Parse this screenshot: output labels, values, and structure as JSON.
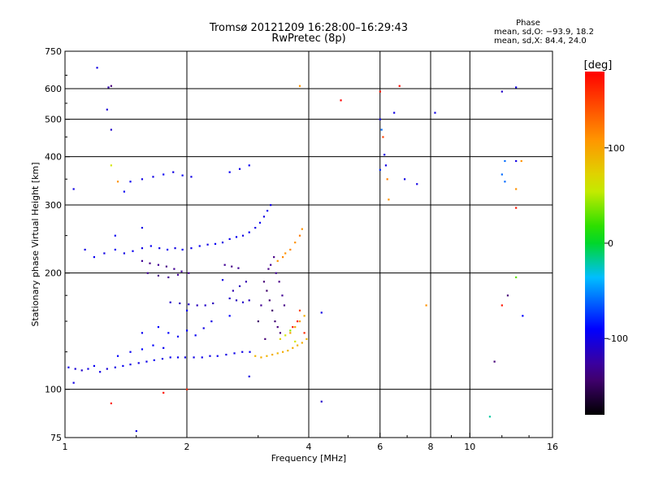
{
  "title": {
    "line1": "Tromsø 20121209 16:28:00–16:29:43",
    "line2": "RwPretec (8p)"
  },
  "phase_stats": {
    "heading": "Phase",
    "line_o": "mean, sd,O: −93.9, 18.2",
    "line_x": "mean, sd,X:  84.4, 24.0"
  },
  "chart_data": {
    "type": "scatter",
    "xlabel": "Frequency [MHz]",
    "ylabel": "Stationary phase Virtual Height [km]",
    "x_scale": "log",
    "y_scale": "log",
    "xlim": [
      1,
      16
    ],
    "ylim": [
      75,
      750
    ],
    "x_ticks": [
      {
        "value": 1,
        "label": "1"
      },
      {
        "value": 2,
        "label": "2"
      },
      {
        "value": 4,
        "label": "4"
      },
      {
        "value": 6,
        "label": "6"
      },
      {
        "value": 8,
        "label": "8"
      },
      {
        "value": 10,
        "label": "10"
      },
      {
        "value": 16,
        "label": "16"
      }
    ],
    "y_ticks": [
      {
        "value": 75,
        "label": "75"
      },
      {
        "value": 100,
        "label": "100"
      },
      {
        "value": 200,
        "label": "200"
      },
      {
        "value": 300,
        "label": "300"
      },
      {
        "value": 400,
        "label": "400"
      },
      {
        "value": 500,
        "label": "500"
      },
      {
        "value": 600,
        "label": "600"
      },
      {
        "value": 750,
        "label": "750"
      }
    ],
    "grid": true,
    "colorbar": {
      "unit": "[deg]",
      "range": [
        -180,
        180
      ],
      "ticks": [
        {
          "value": 100,
          "label": "100"
        },
        {
          "value": 0,
          "label": "0"
        },
        {
          "value": -100,
          "label": "-100"
        }
      ]
    },
    "series": [
      {
        "points": [
          [
            1.02,
            114,
            -100
          ],
          [
            1.06,
            113,
            -105
          ],
          [
            1.1,
            112,
            -110
          ],
          [
            1.14,
            113,
            -100
          ],
          [
            1.18,
            115,
            -95
          ],
          [
            1.22,
            111,
            -100
          ],
          [
            1.27,
            113,
            -105
          ],
          [
            1.33,
            114,
            -100
          ],
          [
            1.39,
            115,
            -95
          ],
          [
            1.45,
            116,
            -100
          ],
          [
            1.52,
            117,
            -100
          ],
          [
            1.59,
            118,
            -98
          ],
          [
            1.66,
            119,
            -95
          ],
          [
            1.74,
            120,
            -100
          ],
          [
            1.82,
            121,
            -98
          ],
          [
            1.9,
            121,
            -95
          ],
          [
            1.98,
            121,
            -100
          ],
          [
            2.08,
            121,
            -100
          ],
          [
            2.18,
            121,
            -98
          ],
          [
            2.28,
            122,
            -100
          ],
          [
            2.38,
            122,
            -95
          ],
          [
            2.5,
            123,
            -100
          ],
          [
            2.62,
            124,
            -98
          ],
          [
            2.74,
            125,
            -100
          ],
          [
            2.86,
            125,
            -95
          ],
          [
            1.35,
            122,
            -90
          ],
          [
            1.45,
            125,
            -95
          ],
          [
            1.55,
            127,
            -90
          ],
          [
            1.65,
            130,
            -92
          ],
          [
            1.75,
            128,
            -95
          ],
          [
            1.8,
            140,
            -90
          ],
          [
            1.9,
            137,
            -95
          ],
          [
            2.0,
            142,
            -90
          ],
          [
            2.1,
            138,
            -95
          ],
          [
            2.2,
            144,
            -100
          ],
          [
            1.55,
            140,
            -95
          ],
          [
            1.7,
            145,
            -90
          ],
          [
            2.0,
            160,
            -95
          ],
          [
            2.3,
            150,
            -100
          ],
          [
            2.55,
            155,
            -90
          ],
          [
            1.12,
            230,
            -100
          ],
          [
            1.18,
            220,
            -95
          ],
          [
            1.25,
            225,
            -100
          ],
          [
            1.33,
            230,
            -95
          ],
          [
            1.4,
            225,
            -100
          ],
          [
            1.47,
            228,
            -95
          ],
          [
            1.55,
            232,
            -100
          ],
          [
            1.63,
            235,
            -95
          ],
          [
            1.71,
            232,
            -100
          ],
          [
            1.79,
            230,
            -95
          ],
          [
            1.87,
            232,
            -100
          ],
          [
            1.95,
            230,
            -95
          ],
          [
            2.05,
            232,
            -98
          ],
          [
            2.15,
            235,
            -95
          ],
          [
            2.25,
            237,
            -100
          ],
          [
            2.35,
            238,
            -95
          ],
          [
            2.45,
            240,
            -100
          ],
          [
            2.55,
            245,
            -98
          ],
          [
            2.65,
            248,
            -95
          ],
          [
            2.75,
            250,
            -100
          ],
          [
            2.85,
            255,
            -95
          ],
          [
            2.95,
            262,
            -100
          ],
          [
            3.03,
            270,
            -95
          ],
          [
            3.1,
            280,
            -100
          ],
          [
            3.16,
            290,
            -95
          ],
          [
            3.22,
            300,
            -100
          ],
          [
            1.33,
            250,
            -95
          ],
          [
            1.55,
            262,
            -100
          ],
          [
            1.55,
            215,
            -130
          ],
          [
            1.62,
            212,
            -135
          ],
          [
            1.7,
            210,
            -130
          ],
          [
            1.78,
            208,
            -135
          ],
          [
            1.86,
            205,
            -130
          ],
          [
            1.94,
            202,
            -128
          ],
          [
            2.02,
            200,
            -130
          ],
          [
            1.6,
            200,
            -130
          ],
          [
            1.7,
            197,
            -135
          ],
          [
            1.8,
            195,
            -130
          ],
          [
            1.9,
            198,
            -128
          ],
          [
            2.48,
            210,
            -130
          ],
          [
            2.58,
            208,
            -135
          ],
          [
            2.68,
            206,
            -130
          ],
          [
            1.82,
            168,
            -110
          ],
          [
            1.92,
            167,
            -115
          ],
          [
            2.02,
            166,
            -110
          ],
          [
            2.12,
            165,
            -115
          ],
          [
            2.22,
            165,
            -110
          ],
          [
            2.32,
            167,
            -115
          ],
          [
            2.55,
            172,
            -110
          ],
          [
            2.65,
            170,
            -115
          ],
          [
            2.75,
            168,
            -110
          ],
          [
            2.85,
            170,
            -115
          ],
          [
            2.6,
            180,
            -120
          ],
          [
            2.7,
            185,
            -115
          ],
          [
            2.45,
            192,
            -100
          ],
          [
            2.8,
            190,
            -120
          ],
          [
            3.1,
            190,
            -140
          ],
          [
            3.15,
            180,
            -145
          ],
          [
            3.2,
            170,
            -140
          ],
          [
            3.25,
            160,
            -145
          ],
          [
            3.3,
            150,
            -140
          ],
          [
            3.35,
            145,
            -138
          ],
          [
            3.4,
            140,
            -140
          ],
          [
            3.05,
            165,
            -130
          ],
          [
            3.18,
            205,
            -135
          ],
          [
            3.22,
            210,
            -130
          ],
          [
            3.28,
            220,
            -135
          ],
          [
            3.32,
            200,
            -130
          ],
          [
            3.38,
            190,
            -135
          ],
          [
            3.44,
            175,
            -130
          ],
          [
            3.48,
            165,
            -135
          ],
          [
            3.0,
            150,
            -145
          ],
          [
            3.12,
            135,
            -140
          ],
          [
            2.95,
            122,
            90
          ],
          [
            3.05,
            121,
            95
          ],
          [
            3.15,
            122,
            90
          ],
          [
            3.25,
            123,
            95
          ],
          [
            3.35,
            124,
            90
          ],
          [
            3.45,
            125,
            95
          ],
          [
            3.55,
            126,
            90
          ],
          [
            3.65,
            128,
            95
          ],
          [
            3.75,
            130,
            90
          ],
          [
            3.85,
            132,
            95
          ],
          [
            3.95,
            135,
            90
          ],
          [
            3.6,
            140,
            100
          ],
          [
            3.7,
            145,
            95
          ],
          [
            3.8,
            150,
            100
          ],
          [
            3.9,
            155,
            95
          ],
          [
            3.4,
            135,
            70
          ],
          [
            3.5,
            138,
            60
          ],
          [
            3.6,
            142,
            40
          ],
          [
            3.7,
            133,
            60
          ],
          [
            3.5,
            225,
            110
          ],
          [
            3.6,
            230,
            115
          ],
          [
            3.7,
            240,
            110
          ],
          [
            3.8,
            250,
            120
          ],
          [
            3.85,
            260,
            110
          ],
          [
            3.35,
            215,
            110
          ],
          [
            3.45,
            220,
            115
          ],
          [
            3.8,
            160,
            150
          ],
          [
            3.9,
            140,
            160
          ],
          [
            3.65,
            145,
            170
          ],
          [
            3.75,
            150,
            175
          ],
          [
            1.65,
            355,
            -100
          ],
          [
            1.75,
            360,
            -95
          ],
          [
            1.85,
            365,
            -100
          ],
          [
            1.95,
            358,
            -95
          ],
          [
            2.05,
            355,
            -100
          ],
          [
            1.45,
            345,
            -95
          ],
          [
            1.55,
            350,
            -100
          ],
          [
            2.55,
            365,
            -95
          ],
          [
            2.7,
            372,
            -100
          ],
          [
            2.85,
            380,
            -95
          ],
          [
            1.05,
            330,
            -100
          ],
          [
            1.4,
            325,
            -95
          ],
          [
            1.3,
            380,
            60
          ],
          [
            1.35,
            345,
            110
          ],
          [
            1.2,
            680,
            -100
          ],
          [
            1.28,
            605,
            -120
          ],
          [
            1.3,
            610,
            -140
          ],
          [
            1.27,
            530,
            -105
          ],
          [
            1.3,
            470,
            -110
          ],
          [
            6.0,
            500,
            -100
          ],
          [
            6.05,
            470,
            -60
          ],
          [
            6.1,
            450,
            150
          ],
          [
            6.15,
            405,
            -100
          ],
          [
            6.2,
            380,
            -100
          ],
          [
            6.25,
            350,
            120
          ],
          [
            6.3,
            310,
            110
          ],
          [
            6.0,
            590,
            170
          ],
          [
            6.5,
            520,
            -100
          ],
          [
            6.9,
            350,
            -100
          ],
          [
            7.4,
            340,
            -100
          ],
          [
            8.2,
            520,
            -100
          ],
          [
            6.7,
            610,
            175
          ],
          [
            7.8,
            165,
            110
          ],
          [
            6.0,
            370,
            -80
          ],
          [
            12.0,
            590,
            -110
          ],
          [
            13.0,
            605,
            -100
          ],
          [
            13.0,
            390,
            -100
          ],
          [
            13.4,
            390,
            110
          ],
          [
            12.2,
            390,
            -60
          ],
          [
            12.0,
            360,
            -60
          ],
          [
            12.2,
            345,
            -60
          ],
          [
            13.0,
            330,
            110
          ],
          [
            13.0,
            295,
            170
          ],
          [
            13.0,
            195,
            30
          ],
          [
            12.4,
            175,
            -140
          ],
          [
            12.0,
            165,
            170
          ],
          [
            13.5,
            155,
            -90
          ],
          [
            11.5,
            118,
            -140
          ],
          [
            11.2,
            85,
            -20
          ],
          [
            4.8,
            560,
            180
          ],
          [
            3.8,
            610,
            110
          ],
          [
            4.3,
            93,
            -110
          ],
          [
            4.3,
            158,
            -100
          ],
          [
            1.75,
            98,
            170
          ],
          [
            1.3,
            92,
            170
          ],
          [
            2.0,
            100,
            160
          ],
          [
            1.05,
            104,
            -100
          ],
          [
            1.5,
            78,
            -100
          ],
          [
            2.85,
            108,
            -100
          ]
        ]
      }
    ]
  }
}
